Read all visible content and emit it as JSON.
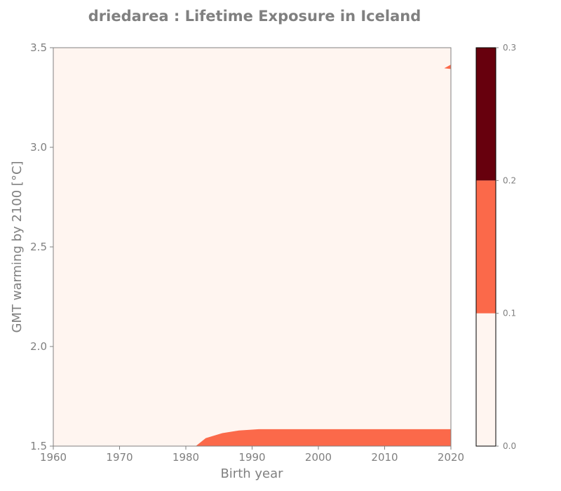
{
  "chart_data": {
    "type": "heatmap",
    "title": "driedarea : Lifetime Exposure in Iceland",
    "xlabel": "Birth year",
    "ylabel": "GMT warming by 2100 [°C]",
    "xlim": [
      1960,
      2020
    ],
    "ylim": [
      1.5,
      3.5
    ],
    "xticks": [
      "1960",
      "1970",
      "1980",
      "1990",
      "2000",
      "2010",
      "2020"
    ],
    "yticks": [
      "1.5",
      "2.0",
      "2.5",
      "3.0",
      "3.5"
    ],
    "grid": false,
    "colorbar": {
      "levels": [
        0.0,
        0.1,
        0.2,
        0.3
      ],
      "tick_labels": [
        "0.0",
        "0.1",
        "0.2",
        "0.3"
      ],
      "colors": [
        "#fff5f0",
        "#fb694a",
        "#67000d"
      ]
    },
    "background_level": "0.0-0.1",
    "regions": [
      {
        "level": "0.1-0.2",
        "description_points": [
          {
            "x": 1981.5,
            "y": 1.5
          },
          {
            "x": 1983,
            "y": 1.54
          },
          {
            "x": 1985.5,
            "y": 1.565
          },
          {
            "x": 1988,
            "y": 1.578
          },
          {
            "x": 1991,
            "y": 1.585
          },
          {
            "x": 2020,
            "y": 1.585
          },
          {
            "x": 2020,
            "y": 1.5
          }
        ]
      },
      {
        "level": "0.1-0.2",
        "description_points": [
          {
            "x": 2020,
            "y": 3.415
          },
          {
            "x": 2019,
            "y": 3.397
          },
          {
            "x": 2020,
            "y": 3.393
          }
        ]
      }
    ],
    "colors": {
      "axis_text": "#808080",
      "spine": "#808080"
    }
  }
}
